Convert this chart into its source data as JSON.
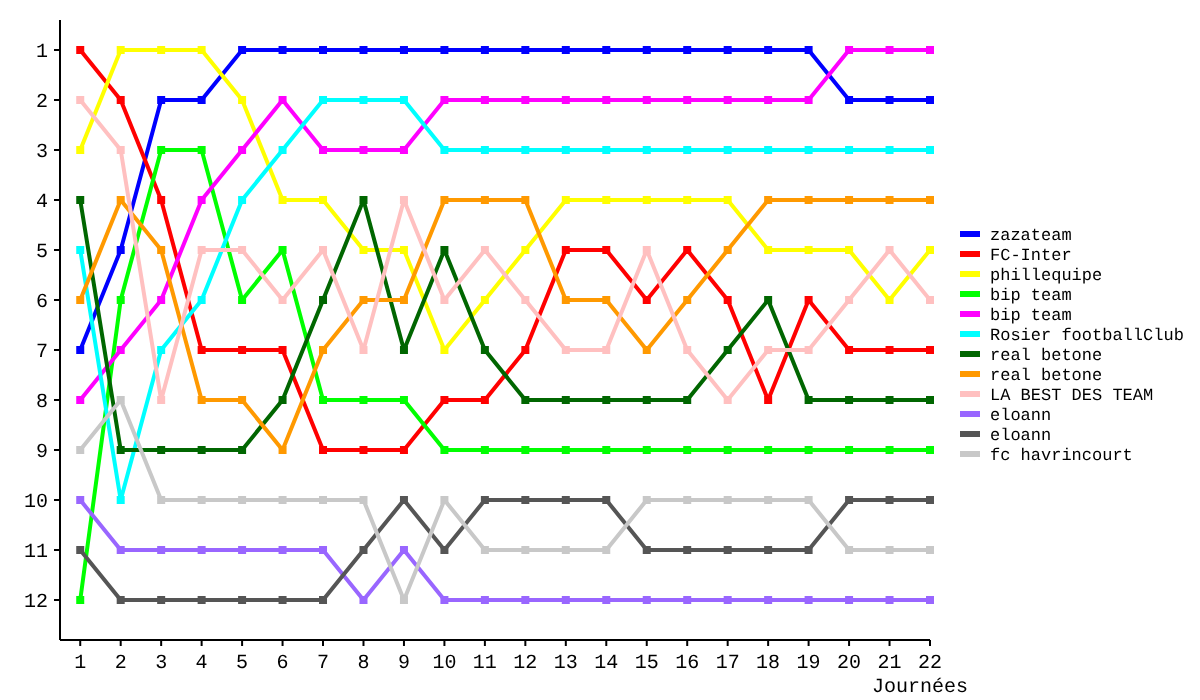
{
  "chart_data": {
    "type": "line",
    "xlabel": "Journées",
    "x": [
      1,
      2,
      3,
      4,
      5,
      6,
      7,
      8,
      9,
      10,
      11,
      12,
      13,
      14,
      15,
      16,
      17,
      18,
      19,
      20,
      21,
      22
    ],
    "xlim": [
      0.5,
      22
    ],
    "xticks": [
      1,
      2,
      3,
      4,
      5,
      6,
      7,
      8,
      9,
      10,
      11,
      12,
      13,
      14,
      15,
      16,
      17,
      18,
      19,
      20,
      21,
      22
    ],
    "ylim": [
      12.8,
      0.4
    ],
    "yticks": [
      1,
      2,
      3,
      4,
      5,
      6,
      7,
      8,
      9,
      10,
      11,
      12
    ],
    "grid": false,
    "legend": "right",
    "marker": "square",
    "line_style": "solid",
    "series": [
      {
        "name": "zazateam",
        "color": "#0000ff",
        "values": [
          7,
          5,
          2,
          2,
          1,
          1,
          1,
          1,
          1,
          1,
          1,
          1,
          1,
          1,
          1,
          1,
          1,
          1,
          1,
          2,
          2,
          2
        ]
      },
      {
        "name": "FC-Inter",
        "color": "#ff0000",
        "values": [
          1,
          2,
          4,
          7,
          7,
          7,
          9,
          9,
          9,
          8,
          8,
          7,
          5,
          5,
          6,
          5,
          6,
          8,
          6,
          7,
          7,
          7
        ]
      },
      {
        "name": "phillequipe",
        "color": "#ffff00",
        "values": [
          3,
          1,
          1,
          1,
          2,
          4,
          4,
          5,
          5,
          7,
          6,
          5,
          4,
          4,
          4,
          4,
          4,
          5,
          5,
          5,
          6,
          5
        ]
      },
      {
        "name": "bip team",
        "color": "#00ff00",
        "values": [
          12,
          6,
          3,
          3,
          6,
          5,
          8,
          8,
          8,
          9,
          9,
          9,
          9,
          9,
          9,
          9,
          9,
          9,
          9,
          9,
          9,
          9
        ]
      },
      {
        "name": "bip team",
        "color": "#ff00ff",
        "values": [
          8,
          7,
          6,
          4,
          3,
          2,
          3,
          3,
          3,
          2,
          2,
          2,
          2,
          2,
          2,
          2,
          2,
          2,
          2,
          1,
          1,
          1
        ]
      },
      {
        "name": "Rosier footballClub",
        "color": "#00ffff",
        "values": [
          5,
          10,
          7,
          6,
          4,
          3,
          2,
          2,
          2,
          3,
          3,
          3,
          3,
          3,
          3,
          3,
          3,
          3,
          3,
          3,
          3,
          3
        ]
      },
      {
        "name": "real betone",
        "color": "#006600",
        "values": [
          4,
          9,
          9,
          9,
          9,
          8,
          6,
          4,
          7,
          5,
          7,
          8,
          8,
          8,
          8,
          8,
          7,
          6,
          8,
          8,
          8,
          8
        ]
      },
      {
        "name": "real betone",
        "color": "#ff9900",
        "values": [
          6,
          4,
          5,
          8,
          8,
          9,
          7,
          6,
          6,
          4,
          4,
          4,
          6,
          6,
          7,
          6,
          5,
          4,
          4,
          4,
          4,
          4
        ]
      },
      {
        "name": "LA BEST DES TEAM",
        "color": "#ffc0c0",
        "values": [
          2,
          3,
          8,
          5,
          5,
          6,
          5,
          7,
          4,
          6,
          5,
          6,
          7,
          7,
          5,
          7,
          8,
          7,
          7,
          6,
          5,
          6
        ]
      },
      {
        "name": "eloann",
        "color": "#9966ff",
        "values": [
          10,
          11,
          11,
          11,
          11,
          11,
          11,
          12,
          11,
          12,
          12,
          12,
          12,
          12,
          12,
          12,
          12,
          12,
          12,
          12,
          12,
          12
        ]
      },
      {
        "name": "eloann",
        "color": "#555555",
        "values": [
          11,
          12,
          12,
          12,
          12,
          12,
          12,
          11,
          10,
          11,
          10,
          10,
          10,
          10,
          11,
          11,
          11,
          11,
          11,
          10,
          10,
          10
        ]
      },
      {
        "name": "fc havrincourt",
        "color": "#c8c8c8",
        "values": [
          9,
          8,
          10,
          10,
          10,
          10,
          10,
          10,
          12,
          10,
          11,
          11,
          11,
          11,
          10,
          10,
          10,
          10,
          10,
          11,
          11,
          11
        ]
      }
    ]
  }
}
